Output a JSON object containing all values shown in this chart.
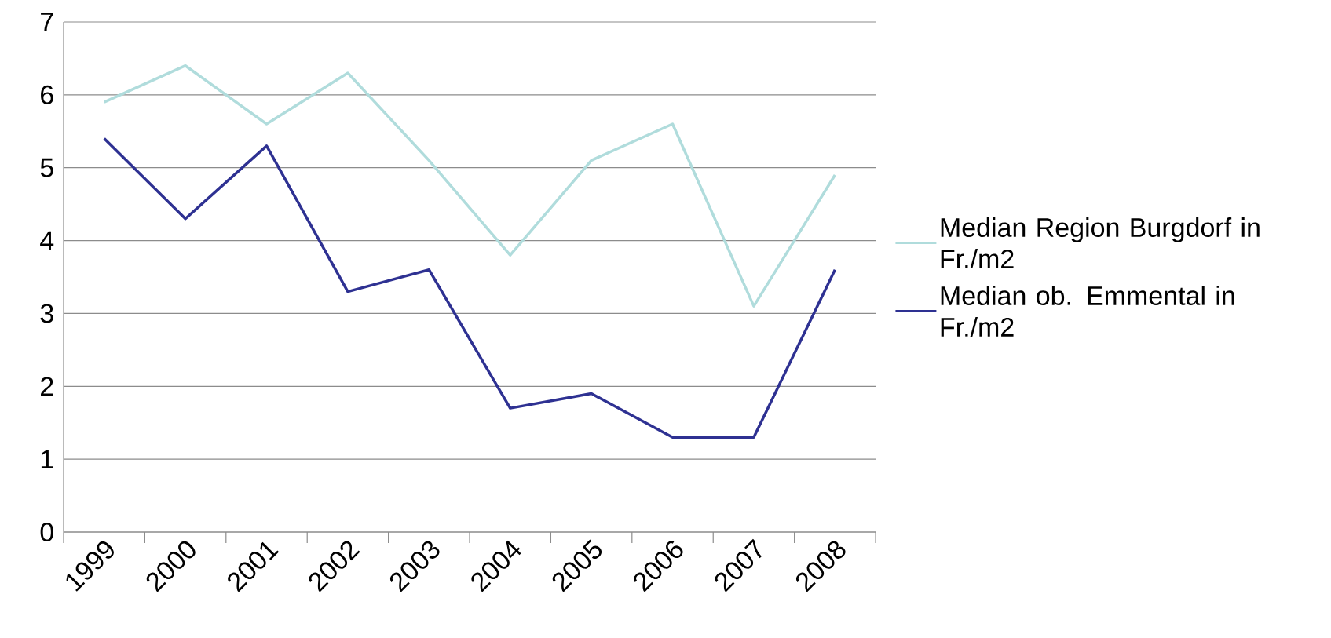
{
  "chart_data": {
    "type": "line",
    "categories": [
      "1999",
      "2000",
      "2001",
      "2002",
      "2003",
      "2004",
      "2005",
      "2006",
      "2007",
      "2008"
    ],
    "series": [
      {
        "name": "Median Region Burgdorf in Fr./m2",
        "color": "#b0dcdc",
        "values": [
          5.9,
          6.4,
          5.6,
          6.3,
          5.1,
          3.8,
          5.1,
          5.6,
          3.1,
          4.9
        ]
      },
      {
        "name": "Median ob. Emmental in Fr./m2",
        "color": "#2e3192",
        "values": [
          5.4,
          4.3,
          5.3,
          3.3,
          3.6,
          1.7,
          1.9,
          1.3,
          1.3,
          3.6
        ]
      }
    ],
    "ylim": [
      0,
      7
    ],
    "yticks": [
      0,
      1,
      2,
      3,
      4,
      5,
      6,
      7
    ],
    "grid": "y",
    "legend": "right",
    "marker": "none",
    "line_style": "solid"
  }
}
